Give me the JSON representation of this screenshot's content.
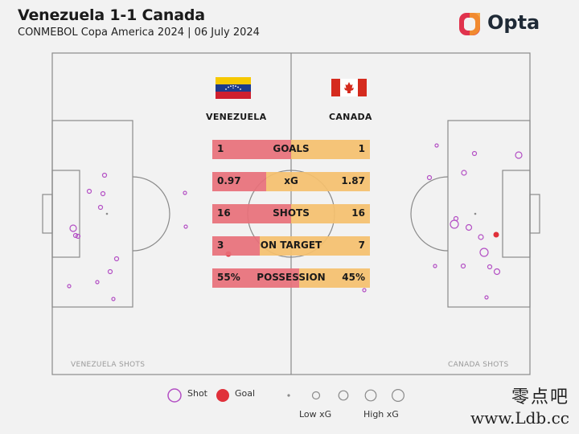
{
  "header": {
    "title": "Venezuela 1-1 Canada",
    "subtitle": "CONMEBOL Copa America 2024 | 06 July 2024",
    "logo_text": "Opta"
  },
  "teams": {
    "home": "VENEZUELA",
    "away": "CANADA",
    "home_shots_label": "VENEZUELA SHOTS",
    "away_shots_label": "CANADA SHOTS"
  },
  "colors": {
    "home_bar": "#e8707a",
    "away_bar": "#f5c06e",
    "shot_outline": "#b34fc4",
    "goal": "#e0303a",
    "pitch_lines": "#8a8a8a"
  },
  "chart_data": {
    "type": "table",
    "stats": [
      {
        "label": "GOALS",
        "home": "1",
        "away": "1",
        "home_share": 0.5
      },
      {
        "label": "xG",
        "home": "0.97",
        "away": "1.87",
        "home_share": 0.34
      },
      {
        "label": "SHOTS",
        "home": "16",
        "away": "16",
        "home_share": 0.5
      },
      {
        "label": "ON TARGET",
        "home": "3",
        "away": "7",
        "home_share": 0.3
      },
      {
        "label": "POSSESSION",
        "home": "55%",
        "away": "45%",
        "home_share": 0.55
      }
    ]
  },
  "legend": {
    "shot": "Shot",
    "goal": "Goal",
    "low_xg": "Low xG",
    "high_xg": "High xG"
  },
  "watermark": {
    "line1": "零点吧",
    "line2": "www.Ldb.cc"
  }
}
